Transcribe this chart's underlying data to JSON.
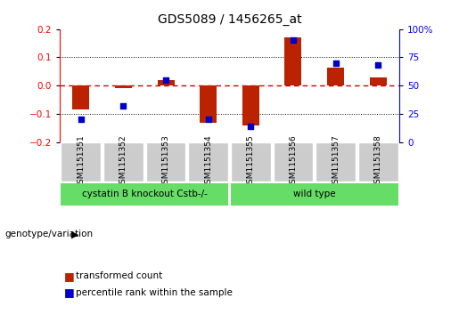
{
  "title": "GDS5089 / 1456265_at",
  "samples": [
    "GSM1151351",
    "GSM1151352",
    "GSM1151353",
    "GSM1151354",
    "GSM1151355",
    "GSM1151356",
    "GSM1151357",
    "GSM1151358"
  ],
  "transformed_count": [
    -0.085,
    -0.01,
    0.02,
    -0.13,
    -0.14,
    0.17,
    0.065,
    0.03
  ],
  "percentile_rank": [
    20,
    32,
    55,
    20,
    14,
    90,
    70,
    68
  ],
  "ylim_left": [
    -0.2,
    0.2
  ],
  "ylim_right": [
    0,
    100
  ],
  "yticks_left": [
    -0.2,
    -0.1,
    0.0,
    0.1,
    0.2
  ],
  "yticks_right": [
    0,
    25,
    50,
    75,
    100
  ],
  "ytick_labels_right": [
    "0",
    "25",
    "50",
    "75",
    "100%"
  ],
  "bar_color": "#bb2200",
  "dot_color": "#0000cc",
  "zero_line_color": "#cc0000",
  "hline_color": "#000000",
  "hline_positions": [
    -0.1,
    0.1
  ],
  "group1_label": "cystatin B knockout Cstb-/-",
  "group2_label": "wild type",
  "group1_indices": [
    0,
    1,
    2,
    3
  ],
  "group2_indices": [
    4,
    5,
    6,
    7
  ],
  "group_color": "#66dd66",
  "cell_bg_color": "#cccccc",
  "genotype_label": "genotype/variation",
  "legend1_label": "transformed count",
  "legend2_label": "percentile rank within the sample",
  "bar_width": 0.4,
  "dot_size": 22,
  "background_color": "#ffffff",
  "title_fontsize": 10,
  "label_fontsize": 6.5,
  "group_fontsize": 7.5,
  "legend_fontsize": 7.5,
  "genotype_fontsize": 7.5
}
